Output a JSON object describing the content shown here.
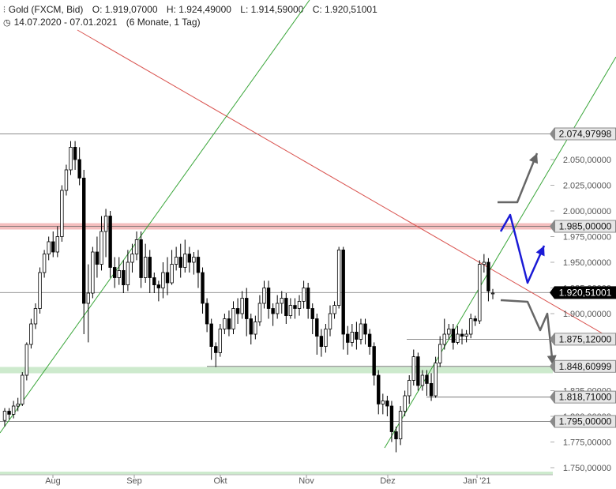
{
  "header": {
    "symbol": "Gold (FXCM, Bid)",
    "open": "O: 1.919,07000",
    "high": "H: 1.924,49000",
    "low": "L: 1.914,59000",
    "close": "C: 1.920,51001",
    "range": "14.07.2020 - 07.01.2021",
    "period": "(6 Monate, 1 Tag)"
  },
  "colors": {
    "up": "#ffffff",
    "down": "#000000",
    "trend_red": "#d9534f",
    "trend_green": "#3aa63a",
    "resistance_zone": "#f0a8a8",
    "support_zone": "#c4e6c4",
    "arrow_blue": "#1a1ad6",
    "arrow_gray": "#666666",
    "tag_gray": "#8a8a8a",
    "tag_black": "#000000"
  },
  "chart_data": {
    "type": "candlestick",
    "x_labels": [
      "Aug",
      "Sep",
      "Okt",
      "Nov",
      "Dez",
      "Jan '21"
    ],
    "y_ticks": [
      "2.050,00000",
      "2.025,00000",
      "2.000,00000",
      "1.975,00000",
      "1.950,00000",
      "1.925,00000",
      "1.900,00000",
      "1.875,00000",
      "1.850,00000",
      "1.825,00000",
      "1.800,00000",
      "1.775,00000",
      "1.750,00000"
    ],
    "y_tick_values": [
      2050,
      2025,
      2000,
      1975,
      1950,
      1925,
      1900,
      1875,
      1850,
      1825,
      1800,
      1775,
      1750
    ],
    "ylim": [
      1750,
      2075
    ],
    "levels": [
      {
        "value": 2074.97998,
        "label": "2.074,97998",
        "style": "gray"
      },
      {
        "value": 1985.0,
        "label": "1.985,00000",
        "style": "gray"
      },
      {
        "value": 1920.51001,
        "label": "1.920,51001",
        "style": "black"
      },
      {
        "value": 1875.12,
        "label": "1.875,12000",
        "style": "gray"
      },
      {
        "value": 1848.60999,
        "label": "1.848,60999",
        "style": "gray"
      },
      {
        "value": 1818.71,
        "label": "1.818,71000",
        "style": "gray"
      },
      {
        "value": 1795.0,
        "label": "1.795,00000",
        "style": "gray"
      }
    ],
    "candles": [
      [
        1796,
        1805,
        1790,
        1808
      ],
      [
        1805,
        1802,
        1797,
        1808
      ],
      [
        1802,
        1810,
        1798,
        1815
      ],
      [
        1810,
        1812,
        1805,
        1818
      ],
      [
        1812,
        1840,
        1810,
        1843
      ],
      [
        1840,
        1870,
        1835,
        1872
      ],
      [
        1870,
        1890,
        1866,
        1895
      ],
      [
        1890,
        1905,
        1885,
        1910
      ],
      [
        1905,
        1940,
        1900,
        1945
      ],
      [
        1940,
        1958,
        1935,
        1962
      ],
      [
        1958,
        1970,
        1952,
        1975
      ],
      [
        1970,
        1960,
        1955,
        1980
      ],
      [
        1960,
        1975,
        1955,
        1985
      ],
      [
        1975,
        2020,
        1970,
        2025
      ],
      [
        2020,
        2040,
        2015,
        2045
      ],
      [
        2040,
        2062,
        2035,
        2068
      ],
      [
        2062,
        2050,
        2040,
        2068
      ],
      [
        2050,
        2032,
        2025,
        2062
      ],
      [
        2032,
        1910,
        1880,
        2040
      ],
      [
        1910,
        1920,
        1872,
        1948
      ],
      [
        1920,
        1960,
        1915,
        1965
      ],
      [
        1960,
        1948,
        1935,
        1975
      ],
      [
        1948,
        1980,
        1942,
        1995
      ],
      [
        1980,
        1995,
        1955,
        2002
      ],
      [
        1995,
        1945,
        1935,
        2000
      ],
      [
        1945,
        1935,
        1925,
        1955
      ],
      [
        1935,
        1942,
        1928,
        1955
      ],
      [
        1942,
        1928,
        1920,
        1952
      ],
      [
        1928,
        1950,
        1922,
        1962
      ],
      [
        1950,
        1958,
        1940,
        1968
      ],
      [
        1958,
        1972,
        1952,
        1980
      ],
      [
        1972,
        1935,
        1925,
        1980
      ],
      [
        1935,
        1955,
        1930,
        1968
      ],
      [
        1955,
        1935,
        1920,
        1962
      ],
      [
        1935,
        1928,
        1920,
        1940
      ],
      [
        1928,
        1925,
        1912,
        1932
      ],
      [
        1925,
        1940,
        1915,
        1950
      ],
      [
        1940,
        1930,
        1918,
        1955
      ],
      [
        1930,
        1948,
        1928,
        1962
      ],
      [
        1948,
        1955,
        1942,
        1965
      ],
      [
        1955,
        1945,
        1935,
        1968
      ],
      [
        1945,
        1958,
        1940,
        1972
      ],
      [
        1958,
        1950,
        1940,
        1965
      ],
      [
        1950,
        1955,
        1938,
        1960
      ],
      [
        1955,
        1940,
        1925,
        1962
      ],
      [
        1940,
        1910,
        1900,
        1945
      ],
      [
        1910,
        1890,
        1882,
        1915
      ],
      [
        1890,
        1868,
        1855,
        1895
      ],
      [
        1868,
        1862,
        1848,
        1872
      ],
      [
        1862,
        1885,
        1858,
        1890
      ],
      [
        1885,
        1895,
        1880,
        1900
      ],
      [
        1895,
        1885,
        1878,
        1903
      ],
      [
        1885,
        1905,
        1880,
        1912
      ],
      [
        1905,
        1900,
        1890,
        1915
      ],
      [
        1900,
        1915,
        1895,
        1922
      ],
      [
        1915,
        1895,
        1878,
        1925
      ],
      [
        1895,
        1880,
        1870,
        1900
      ],
      [
        1880,
        1892,
        1875,
        1898
      ],
      [
        1892,
        1910,
        1888,
        1918
      ],
      [
        1910,
        1925,
        1905,
        1932
      ],
      [
        1925,
        1905,
        1895,
        1932
      ],
      [
        1905,
        1900,
        1888,
        1910
      ],
      [
        1900,
        1910,
        1895,
        1918
      ],
      [
        1910,
        1915,
        1900,
        1922
      ],
      [
        1915,
        1898,
        1890,
        1920
      ],
      [
        1898,
        1908,
        1895,
        1915
      ],
      [
        1908,
        1905,
        1895,
        1915
      ],
      [
        1905,
        1912,
        1898,
        1918
      ],
      [
        1912,
        1925,
        1905,
        1932
      ],
      [
        1925,
        1905,
        1895,
        1930
      ],
      [
        1905,
        1895,
        1880,
        1910
      ],
      [
        1895,
        1878,
        1860,
        1900
      ],
      [
        1878,
        1868,
        1858,
        1885
      ],
      [
        1868,
        1885,
        1862,
        1890
      ],
      [
        1885,
        1900,
        1878,
        1908
      ],
      [
        1900,
        1908,
        1895,
        1912
      ],
      [
        1908,
        1962,
        1905,
        1965
      ],
      [
        1962,
        1880,
        1865,
        1965
      ],
      [
        1880,
        1872,
        1860,
        1888
      ],
      [
        1872,
        1882,
        1868,
        1890
      ],
      [
        1882,
        1875,
        1865,
        1892
      ],
      [
        1875,
        1890,
        1870,
        1895
      ],
      [
        1890,
        1880,
        1870,
        1895
      ],
      [
        1880,
        1868,
        1860,
        1885
      ],
      [
        1868,
        1840,
        1830,
        1872
      ],
      [
        1840,
        1812,
        1802,
        1845
      ],
      [
        1812,
        1815,
        1802,
        1822
      ],
      [
        1815,
        1810,
        1800,
        1820
      ],
      [
        1810,
        1785,
        1775,
        1815
      ],
      [
        1785,
        1778,
        1765,
        1790
      ],
      [
        1778,
        1805,
        1772,
        1810
      ],
      [
        1805,
        1820,
        1800,
        1825
      ],
      [
        1820,
        1835,
        1812,
        1840
      ],
      [
        1835,
        1858,
        1830,
        1865
      ],
      [
        1858,
        1830,
        1825,
        1862
      ],
      [
        1830,
        1840,
        1825,
        1845
      ],
      [
        1840,
        1832,
        1820,
        1845
      ],
      [
        1832,
        1820,
        1815,
        1842
      ],
      [
        1820,
        1852,
        1818,
        1858
      ],
      [
        1852,
        1870,
        1848,
        1878
      ],
      [
        1870,
        1880,
        1865,
        1895
      ],
      [
        1880,
        1885,
        1875,
        1890
      ],
      [
        1885,
        1872,
        1865,
        1890
      ],
      [
        1872,
        1880,
        1870,
        1888
      ],
      [
        1880,
        1878,
        1870,
        1885
      ],
      [
        1878,
        1880,
        1872,
        1884
      ],
      [
        1880,
        1895,
        1876,
        1900
      ],
      [
        1895,
        1893,
        1888,
        1898
      ],
      [
        1893,
        1948,
        1890,
        1952
      ],
      [
        1948,
        1950,
        1940,
        1958
      ],
      [
        1950,
        1922,
        1912,
        1954
      ],
      [
        1920,
        1920,
        1914,
        1924
      ]
    ]
  }
}
